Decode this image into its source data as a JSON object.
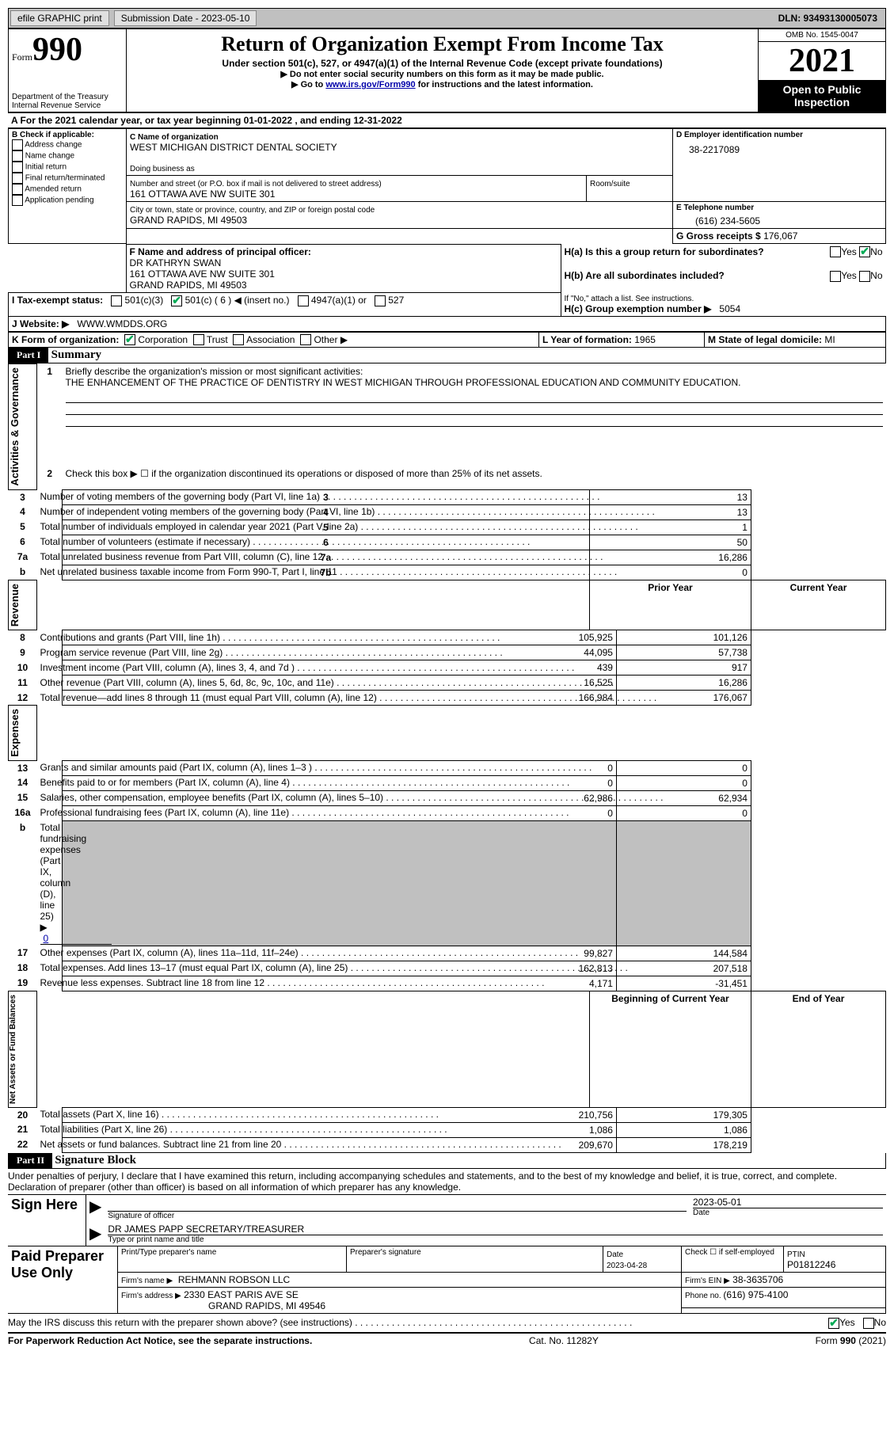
{
  "topbar": {
    "efile_label": "efile GRAPHIC print",
    "submission_label": "Submission Date - 2023-05-10",
    "dln_label": "DLN: 93493130005073"
  },
  "header": {
    "form_word": "Form",
    "form_no": "990",
    "dept": "Department of the Treasury",
    "irs": "Internal Revenue Service",
    "title": "Return of Organization Exempt From Income Tax",
    "subtitle": "Under section 501(c), 527, or 4947(a)(1) of the Internal Revenue Code (except private foundations)",
    "note1": "▶ Do not enter social security numbers on this form as it may be made public.",
    "note2a": "▶ Go to ",
    "note2_link": "www.irs.gov/Form990",
    "note2b": " for instructions and the latest information.",
    "omb": "OMB No. 1545-0047",
    "year": "2021",
    "open": "Open to Public Inspection"
  },
  "A": {
    "text": "A For the 2021 calendar year, or tax year beginning 01-01-2022    , and ending 12-31-2022"
  },
  "B": {
    "label": "B Check if applicable:",
    "opts": [
      "Address change",
      "Name change",
      "Initial return",
      "Final return/terminated",
      "Amended return",
      "Application pending"
    ]
  },
  "C": {
    "name_label": "C Name of organization",
    "name": "WEST MICHIGAN DISTRICT DENTAL SOCIETY",
    "dba_label": "Doing business as",
    "dba": "",
    "street_label": "Number and street (or P.O. box if mail is not delivered to street address)",
    "room_label": "Room/suite",
    "street": "161 OTTAWA AVE NW SUITE 301",
    "city_label": "City or town, state or province, country, and ZIP or foreign postal code",
    "city": "GRAND RAPIDS, MI  49503"
  },
  "D": {
    "label": "D Employer identification number",
    "value": "38-2217089"
  },
  "E": {
    "label": "E Telephone number",
    "value": "(616) 234-5605"
  },
  "G": {
    "label": "G Gross receipts $ ",
    "value": "176,067"
  },
  "F": {
    "label": "F  Name and address of principal officer:",
    "line1": "DR KATHRYN SWAN",
    "line2": "161 OTTAWA AVE NW SUITE 301",
    "line3": "GRAND RAPIDS, MI  49503"
  },
  "H": {
    "a_label": "H(a)  Is this a group return for subordinates?",
    "b_label": "H(b)  Are all subordinates included?",
    "b_note": "If \"No,\" attach a list. See instructions.",
    "c_label": "H(c)  Group exemption number ▶",
    "c_value": "5054",
    "yes": "Yes",
    "no": "No"
  },
  "I": {
    "label": "I     Tax-exempt status:",
    "o1": "501(c)(3)",
    "o2": "501(c) ( 6 ) ◀ (insert no.)",
    "o3": "4947(a)(1) or",
    "o4": "527"
  },
  "J": {
    "label": "J    Website: ▶",
    "value": "WWW.WMDDS.ORG"
  },
  "K": {
    "label": "K Form of organization:",
    "o1": "Corporation",
    "o2": "Trust",
    "o3": "Association",
    "o4": "Other ▶"
  },
  "L": {
    "label": "L Year of formation: ",
    "value": "1965"
  },
  "M": {
    "label": "M State of legal domicile: ",
    "value": "MI"
  },
  "part1": {
    "hdr": "Part I",
    "title": "Summary"
  },
  "summary": {
    "line1_label": "Briefly describe the organization's mission or most significant activities:",
    "line1_text": "THE ENHANCEMENT OF THE PRACTICE OF DENTISTRY IN WEST MICHIGAN THROUGH PROFESSIONAL EDUCATION AND COMMUNITY EDUCATION.",
    "line2": "Check this box ▶ ☐  if the organization discontinued its operations or disposed of more than 25% of its net assets.",
    "rows_ag": [
      {
        "n": "3",
        "t": "Number of voting members of the governing body (Part VI, line 1a)",
        "box": "3",
        "v": "13"
      },
      {
        "n": "4",
        "t": "Number of independent voting members of the governing body (Part VI, line 1b)",
        "box": "4",
        "v": "13"
      },
      {
        "n": "5",
        "t": "Total number of individuals employed in calendar year 2021 (Part V, line 2a)",
        "box": "5",
        "v": "1"
      },
      {
        "n": "6",
        "t": "Total number of volunteers (estimate if necessary)",
        "box": "6",
        "v": "50"
      },
      {
        "n": "7a",
        "t": "Total unrelated business revenue from Part VIII, column (C), line 12",
        "box": "7a",
        "v": "16,286"
      },
      {
        "n": "b",
        "t": "Net unrelated business taxable income from Form 990-T, Part I, line 11",
        "box": "7b",
        "v": "0"
      }
    ],
    "col_py": "Prior Year",
    "col_cy": "Current Year",
    "rev_rows": [
      {
        "n": "8",
        "t": "Contributions and grants (Part VIII, line 1h)",
        "py": "105,925",
        "cy": "101,126"
      },
      {
        "n": "9",
        "t": "Program service revenue (Part VIII, line 2g)",
        "py": "44,095",
        "cy": "57,738"
      },
      {
        "n": "10",
        "t": "Investment income (Part VIII, column (A), lines 3, 4, and 7d )",
        "py": "439",
        "cy": "917"
      },
      {
        "n": "11",
        "t": "Other revenue (Part VIII, column (A), lines 5, 6d, 8c, 9c, 10c, and 11e)",
        "py": "16,525",
        "cy": "16,286"
      },
      {
        "n": "12",
        "t": "Total revenue—add lines 8 through 11 (must equal Part VIII, column (A), line 12)",
        "py": "166,984",
        "cy": "176,067"
      }
    ],
    "exp_rows": [
      {
        "n": "13",
        "t": "Grants and similar amounts paid (Part IX, column (A), lines 1–3 )",
        "py": "0",
        "cy": "0"
      },
      {
        "n": "14",
        "t": "Benefits paid to or for members (Part IX, column (A), line 4)",
        "py": "0",
        "cy": "0"
      },
      {
        "n": "15",
        "t": "Salaries, other compensation, employee benefits (Part IX, column (A), lines 5–10)",
        "py": "62,986",
        "cy": "62,934"
      },
      {
        "n": "16a",
        "t": "Professional fundraising fees (Part IX, column (A), line 11e)",
        "py": "0",
        "cy": "0"
      }
    ],
    "line16b_label": "Total fundraising expenses (Part IX, column (D), line 25) ▶",
    "line16b_value": "0",
    "exp_rows2": [
      {
        "n": "17",
        "t": "Other expenses (Part IX, column (A), lines 11a–11d, 11f–24e)",
        "py": "99,827",
        "cy": "144,584"
      },
      {
        "n": "18",
        "t": "Total expenses. Add lines 13–17 (must equal Part IX, column (A), line 25)",
        "py": "162,813",
        "cy": "207,518"
      },
      {
        "n": "19",
        "t": "Revenue less expenses. Subtract line 18 from line 12",
        "py": "4,171",
        "cy": "-31,451"
      }
    ],
    "col_boy": "Beginning of Current Year",
    "col_eoy": "End of Year",
    "na_rows": [
      {
        "n": "20",
        "t": "Total assets (Part X, line 16)",
        "py": "210,756",
        "cy": "179,305"
      },
      {
        "n": "21",
        "t": "Total liabilities (Part X, line 26)",
        "py": "1,086",
        "cy": "1,086"
      },
      {
        "n": "22",
        "t": "Net assets or fund balances. Subtract line 21 from line 20",
        "py": "209,670",
        "cy": "178,219"
      }
    ],
    "vlabels": {
      "ag": "Activities & Governance",
      "rev": "Revenue",
      "exp": "Expenses",
      "na": "Net Assets or Fund Balances"
    }
  },
  "part2": {
    "hdr": "Part II",
    "title": "Signature Block",
    "decl": "Under penalties of perjury, I declare that I have examined this return, including accompanying schedules and statements, and to the best of my knowledge and belief, it is true, correct, and complete. Declaration of preparer (other than officer) is based on all information of which preparer has any knowledge."
  },
  "sign": {
    "label": "Sign Here",
    "sig_label": "Signature of officer",
    "date_label": "Date",
    "date_value": "2023-05-01",
    "name_line": "DR JAMES PAPP  SECRETARY/TREASURER",
    "name_label": "Type or print name and title"
  },
  "preparer": {
    "label": "Paid Preparer Use Only",
    "print_label": "Print/Type preparer's name",
    "sig_label": "Preparer's signature",
    "date_label": "Date",
    "date_value": "2023-04-28",
    "check_label": "Check ☐ if self-employed",
    "ptin_label": "PTIN",
    "ptin": "P01812246",
    "firm_name_label": "Firm's name     ▶",
    "firm_name": "REHMANN ROBSON LLC",
    "firm_ein_label": "Firm's EIN ▶",
    "firm_ein": "38-3635706",
    "firm_addr_label": "Firm's address ▶",
    "firm_addr1": "2330 EAST PARIS AVE SE",
    "firm_addr2": "GRAND RAPIDS, MI  49546",
    "phone_label": "Phone no. ",
    "phone": "(616) 975-4100"
  },
  "discuss": {
    "text": "May the IRS discuss this return with the preparer shown above? (see instructions)",
    "yes": "Yes",
    "no": "No"
  },
  "footer": {
    "left": "For Paperwork Reduction Act Notice, see the separate instructions.",
    "mid": "Cat. No. 11282Y",
    "right": "Form 990 (2021)"
  }
}
